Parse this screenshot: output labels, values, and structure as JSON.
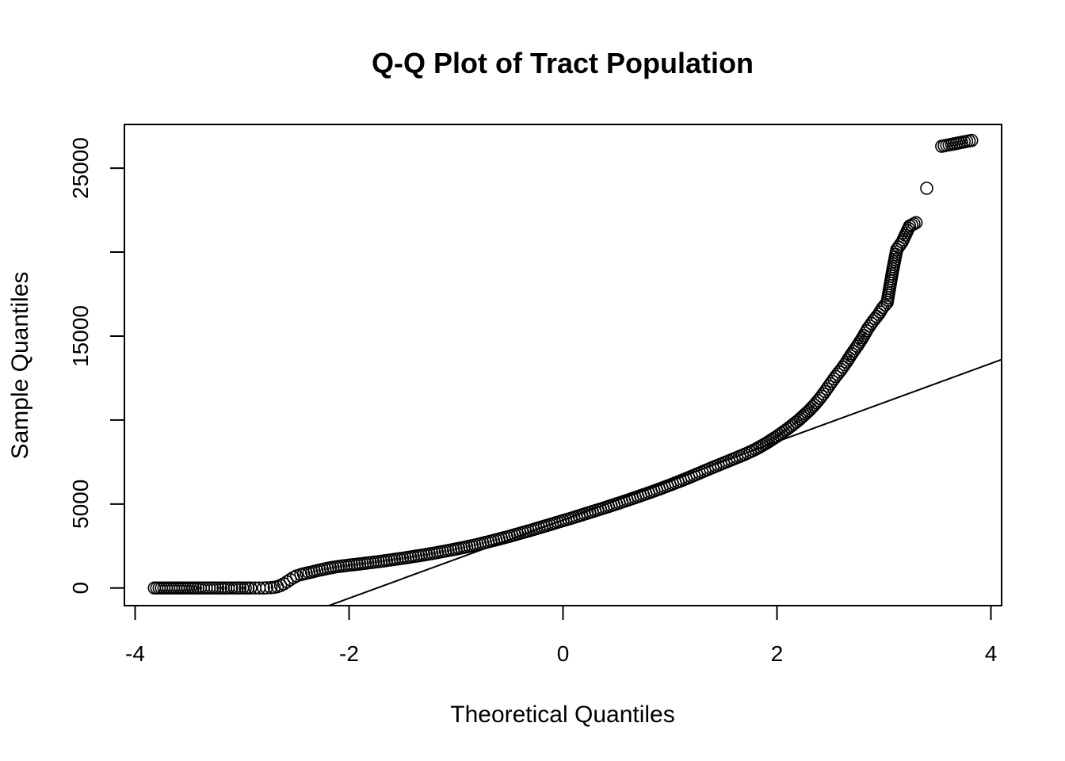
{
  "chart_data": {
    "type": "scatter",
    "title": "Q-Q Plot of Tract Population",
    "xlabel": "Theoretical Quantiles",
    "ylabel": "Sample Quantiles",
    "xlim": [
      -4.1,
      4.1
    ],
    "ylim": [
      -1050,
      27600
    ],
    "x_ticks": [
      -4,
      -2,
      0,
      2,
      4
    ],
    "x_tick_labels": [
      "-4",
      "-2",
      "0",
      "2",
      "4"
    ],
    "y_ticks": [
      0,
      5000,
      10000,
      15000,
      20000,
      25000
    ],
    "y_tick_labels": [
      "0",
      "5000",
      "",
      "15000",
      "",
      "25000"
    ],
    "grid": false,
    "reference_line": {
      "slope": 2330,
      "intercept": 4050
    },
    "points": [
      [
        -3.82,
        0
      ],
      [
        -3.53,
        0
      ],
      [
        -3.39,
        0
      ],
      [
        -3.28,
        0
      ],
      [
        -3.2,
        0
      ],
      [
        -3.13,
        0
      ],
      [
        -3.07,
        0
      ],
      [
        -3.02,
        0
      ],
      [
        -2.97,
        0
      ],
      [
        -2.92,
        0
      ],
      [
        -2.88,
        0
      ],
      [
        -2.84,
        0
      ],
      [
        -2.8,
        0
      ],
      [
        -2.77,
        10
      ],
      [
        -2.73,
        20
      ],
      [
        -2.7,
        40
      ],
      [
        -2.67,
        80
      ],
      [
        -2.64,
        150
      ],
      [
        -2.61,
        250
      ],
      [
        -2.58,
        370
      ],
      [
        -2.55,
        500
      ],
      [
        -2.52,
        620
      ],
      [
        -2.49,
        720
      ],
      [
        -2.45,
        800
      ],
      [
        -2.4,
        880
      ],
      [
        -2.35,
        950
      ],
      [
        -2.3,
        1030
      ],
      [
        -2.25,
        1100
      ],
      [
        -2.2,
        1170
      ],
      [
        -2.15,
        1230
      ],
      [
        -2.1,
        1280
      ],
      [
        -2.05,
        1320
      ],
      [
        -2.0,
        1360
      ],
      [
        -1.9,
        1430
      ],
      [
        -1.8,
        1510
      ],
      [
        -1.7,
        1590
      ],
      [
        -1.6,
        1680
      ],
      [
        -1.5,
        1770
      ],
      [
        -1.4,
        1870
      ],
      [
        -1.3,
        1970
      ],
      [
        -1.2,
        2080
      ],
      [
        -1.1,
        2200
      ],
      [
        -1.0,
        2320
      ],
      [
        -0.9,
        2450
      ],
      [
        -0.8,
        2590
      ],
      [
        -0.7,
        2750
      ],
      [
        -0.6,
        2910
      ],
      [
        -0.5,
        3080
      ],
      [
        -0.4,
        3260
      ],
      [
        -0.3,
        3440
      ],
      [
        -0.2,
        3630
      ],
      [
        -0.1,
        3820
      ],
      [
        0.0,
        4010
      ],
      [
        0.1,
        4200
      ],
      [
        0.2,
        4400
      ],
      [
        0.3,
        4600
      ],
      [
        0.4,
        4800
      ],
      [
        0.5,
        5010
      ],
      [
        0.6,
        5220
      ],
      [
        0.7,
        5440
      ],
      [
        0.8,
        5660
      ],
      [
        0.9,
        5890
      ],
      [
        1.0,
        6130
      ],
      [
        1.1,
        6380
      ],
      [
        1.2,
        6640
      ],
      [
        1.3,
        6910
      ],
      [
        1.4,
        7180
      ],
      [
        1.5,
        7440
      ],
      [
        1.6,
        7700
      ],
      [
        1.7,
        7960
      ],
      [
        1.8,
        8260
      ],
      [
        1.9,
        8620
      ],
      [
        2.0,
        9030
      ],
      [
        2.1,
        9480
      ],
      [
        2.2,
        9980
      ],
      [
        2.3,
        10560
      ],
      [
        2.35,
        10900
      ],
      [
        2.4,
        11280
      ],
      [
        2.45,
        11700
      ],
      [
        2.5,
        12160
      ],
      [
        2.55,
        12600
      ],
      [
        2.6,
        13000
      ],
      [
        2.65,
        13450
      ],
      [
        2.7,
        13950
      ],
      [
        2.75,
        14400
      ],
      [
        2.8,
        14900
      ],
      [
        2.85,
        15450
      ],
      [
        2.9,
        15900
      ],
      [
        2.95,
        16300
      ],
      [
        2.99,
        16700
      ],
      [
        3.03,
        17000
      ],
      [
        3.08,
        18850
      ],
      [
        3.12,
        20150
      ],
      [
        3.17,
        20600
      ],
      [
        3.24,
        21550
      ],
      [
        3.3,
        21750
      ],
      [
        3.4,
        23800
      ],
      [
        3.54,
        26300
      ],
      [
        3.82,
        26650
      ]
    ]
  }
}
